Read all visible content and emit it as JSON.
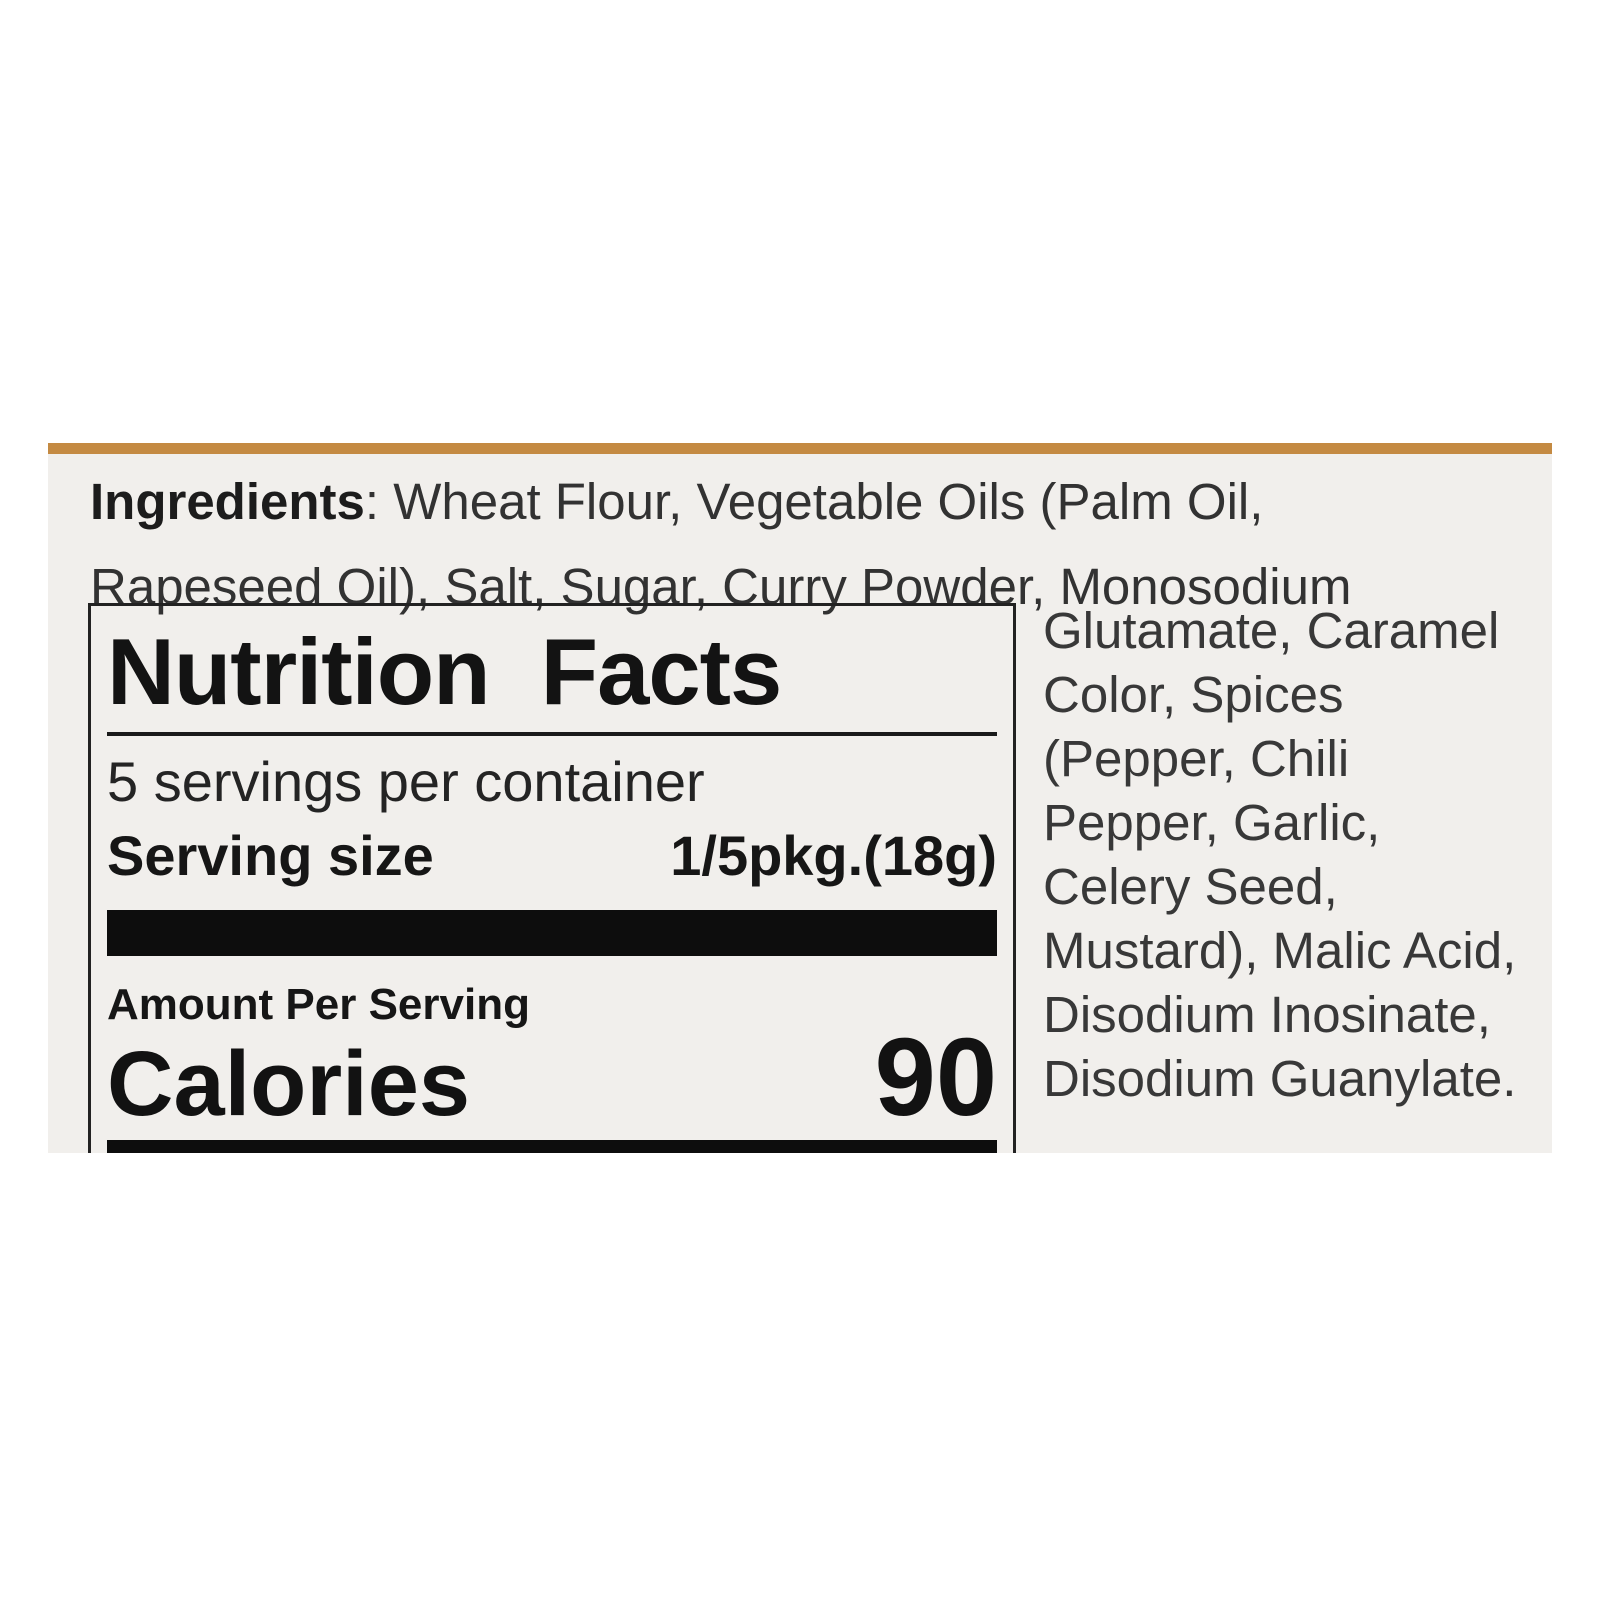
{
  "colors": {
    "band_orange": "#c48a42",
    "label_background": "#f1efec",
    "panel_text": "#161616",
    "paragraph_text": "#323232"
  },
  "ingredients": {
    "heading": "Ingredients",
    "line1_rest": ": Wheat Flour, Vegetable Oils (Palm Oil,",
    "line2": "Rapeseed Oil), Salt, Sugar, Curry Powder, Monosodium",
    "right_column": [
      "Glutamate, Caramel",
      "Color, Spices",
      "(Pepper, Chili",
      "Pepper, Garlic,",
      "Celery Seed,",
      "Mustard), Malic Acid,",
      "Disodium Inosinate,",
      "Disodium Guanylate."
    ]
  },
  "panel": {
    "title": "Nutrition Facts",
    "servings": "5 servings per container",
    "serving_size_label": "Serving size",
    "serving_size_value": "1/5pkg.(18g)",
    "amount_per_serving": "Amount Per Serving",
    "calories_label": "Calories",
    "calories_value": "90"
  }
}
